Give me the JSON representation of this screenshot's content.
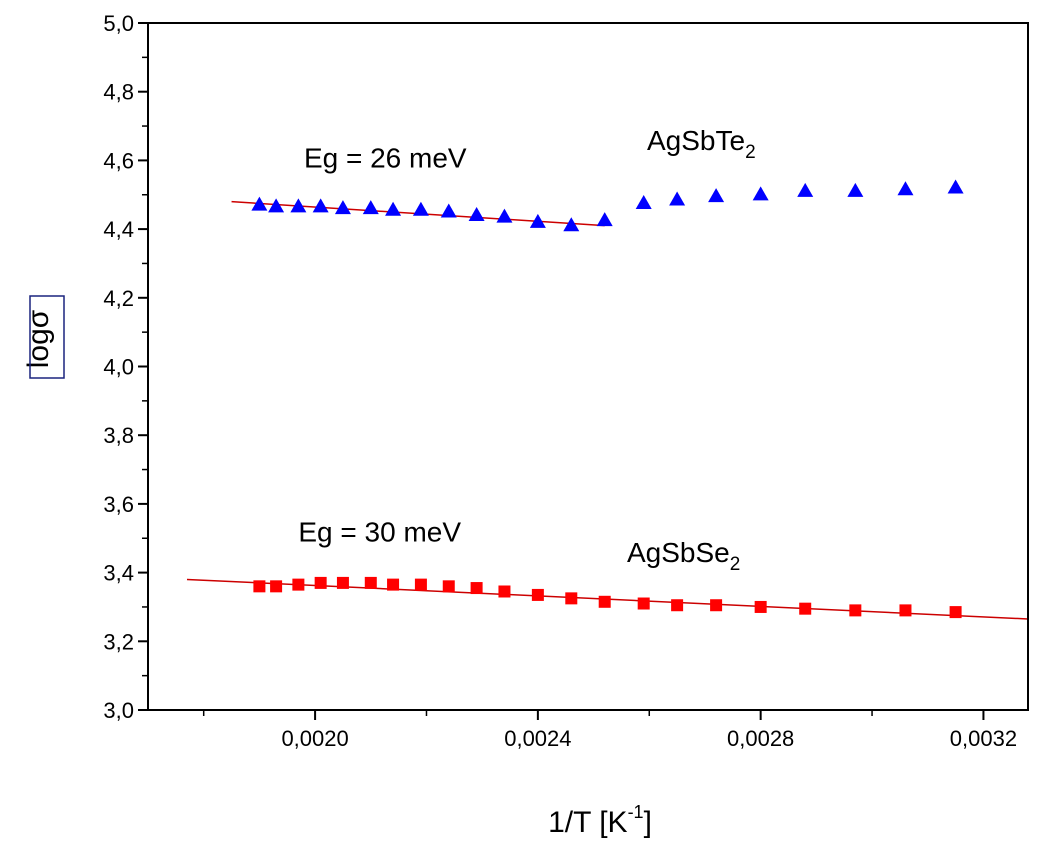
{
  "chart_data": {
    "type": "scatter",
    "xlabel": "1/T [K",
    "xlabel_sup": "-1",
    "xlabel_end": "]",
    "ylabel": "log",
    "ylabel_symbol": "σ",
    "xlim": [
      0.0017,
      0.00328
    ],
    "ylim": [
      3.0,
      5.0
    ],
    "x_ticks": [
      0.002,
      0.0024,
      0.0028,
      0.0032
    ],
    "x_tick_labels": [
      "0,0020",
      "0,0024",
      "0,0028",
      "0,0032"
    ],
    "x_minor_ticks": [
      0.0018,
      0.0022,
      0.0026,
      0.003
    ],
    "y_ticks": [
      3.0,
      3.2,
      3.4,
      3.6,
      3.8,
      4.0,
      4.2,
      4.4,
      4.6,
      4.8,
      5.0
    ],
    "y_tick_labels": [
      "3,0",
      "3,2",
      "3,4",
      "3,6",
      "3,8",
      "4,0",
      "4,2",
      "4,4",
      "4,6",
      "4,8",
      "5,0"
    ],
    "grid": false,
    "series": [
      {
        "name": "AgSbTe",
        "name_sub": "2",
        "marker": "triangle",
        "color": "#0000ff",
        "x": [
          0.0019,
          0.00193,
          0.00197,
          0.00201,
          0.00205,
          0.0021,
          0.00214,
          0.00219,
          0.00224,
          0.00229,
          0.00234,
          0.0024,
          0.00246,
          0.00252,
          0.00259,
          0.00265,
          0.00272,
          0.0028,
          0.00288,
          0.00297,
          0.00306,
          0.00315
        ],
        "y": [
          4.47,
          4.465,
          4.465,
          4.465,
          4.46,
          4.46,
          4.455,
          4.455,
          4.45,
          4.44,
          4.435,
          4.42,
          4.41,
          4.425,
          4.475,
          4.485,
          4.495,
          4.5,
          4.51,
          4.51,
          4.515,
          4.52
        ]
      },
      {
        "name": "AgSbSe",
        "name_sub": "2",
        "marker": "square",
        "color": "#ff0000",
        "x": [
          0.0019,
          0.00193,
          0.00197,
          0.00201,
          0.00205,
          0.0021,
          0.00214,
          0.00219,
          0.00224,
          0.00229,
          0.00234,
          0.0024,
          0.00246,
          0.00252,
          0.00259,
          0.00265,
          0.00272,
          0.0028,
          0.00288,
          0.00297,
          0.00306,
          0.00315
        ],
        "y": [
          3.36,
          3.36,
          3.365,
          3.37,
          3.37,
          3.37,
          3.365,
          3.365,
          3.36,
          3.355,
          3.345,
          3.335,
          3.325,
          3.315,
          3.31,
          3.305,
          3.305,
          3.3,
          3.295,
          3.29,
          3.29,
          3.285
        ]
      }
    ],
    "fits": [
      {
        "x": [
          0.00185,
          0.00252
        ],
        "y": [
          4.48,
          4.41
        ],
        "color": "#cc0000"
      },
      {
        "x": [
          0.00177,
          0.00328
        ],
        "y": [
          3.38,
          3.265
        ],
        "color": "#cc0000"
      }
    ],
    "annotations": [
      {
        "text": "Eg = 26 meV",
        "x": 0.00198,
        "y": 4.58
      },
      {
        "text": "Eg = 30 meV",
        "x": 0.00197,
        "y": 3.49
      }
    ]
  }
}
